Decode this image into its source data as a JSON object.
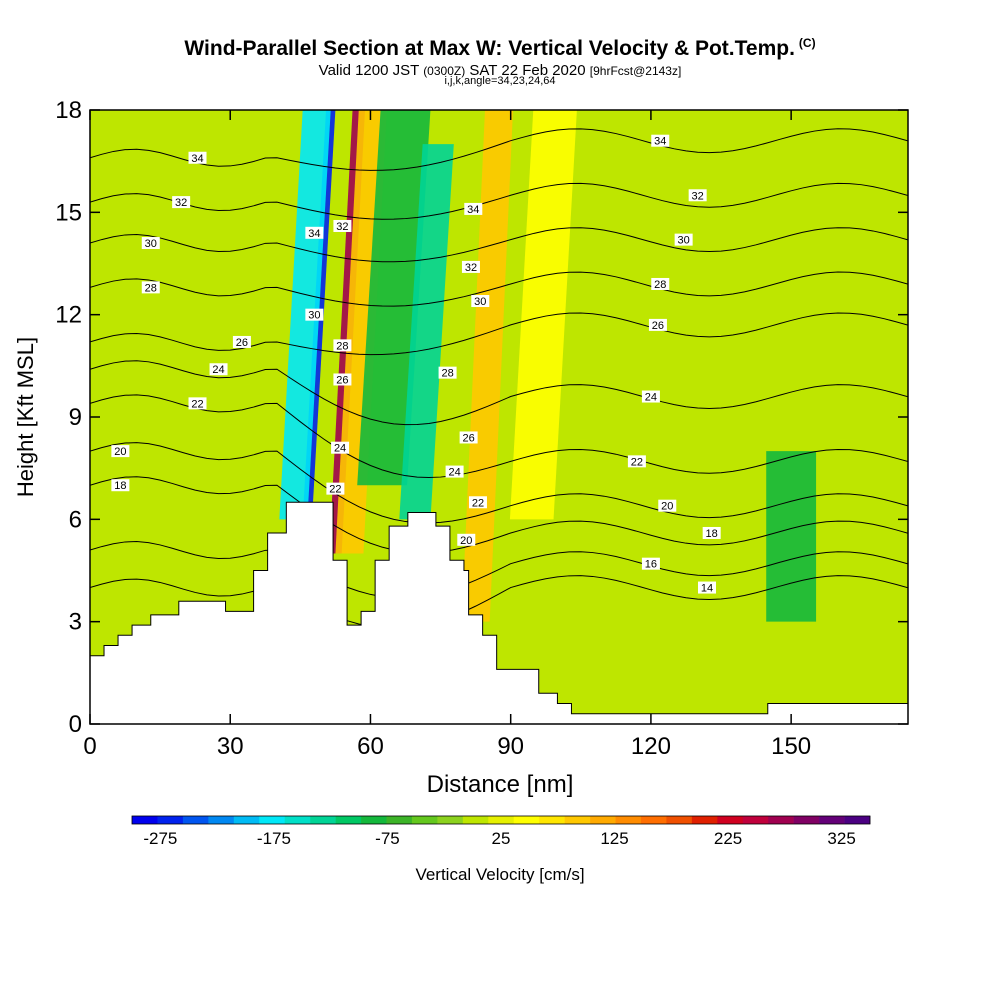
{
  "header": {
    "title": "Wind-Parallel Section at Max W: Vertical Velocity & Pot.Temp.",
    "copyright_mark": "(C)",
    "valid_prefix": "Valid 1200 JST",
    "valid_utc": "(0300Z)",
    "valid_date": "SAT 22 Feb 2020",
    "forecast_info": "[9hrFcst@2143z]",
    "ijk_line": "i,j,k,angle=34,23,24,64"
  },
  "chart_data": {
    "type": "heatmap",
    "xlabel": "Distance [nm]",
    "ylabel": "Height [Kft MSL]",
    "xlim": [
      0,
      175
    ],
    "ylim": [
      0,
      18
    ],
    "xticks": [
      0,
      30,
      60,
      90,
      120,
      150
    ],
    "yticks": [
      0,
      3,
      6,
      9,
      12,
      15,
      18
    ],
    "colorbar": {
      "label": "Vertical Velocity [cm/s]",
      "tick_labels": [
        -275,
        -175,
        -75,
        25,
        125,
        225,
        325
      ],
      "min": -300,
      "max": 350,
      "step": 25,
      "colors": [
        "#0000ee",
        "#0022ee",
        "#0055f0",
        "#0088f2",
        "#00bbf5",
        "#00e8f8",
        "#00e0c8",
        "#00d496",
        "#00c864",
        "#14b83c",
        "#3cb428",
        "#64c81e",
        "#8cd21e",
        "#bee600",
        "#e6f000",
        "#ffff00",
        "#ffe600",
        "#ffc800",
        "#ffaa00",
        "#ff8c00",
        "#ff6e00",
        "#f05000",
        "#e02000",
        "#d00020",
        "#c0003c",
        "#a00050",
        "#800064",
        "#640078",
        "#4b0082"
      ]
    },
    "velocity_features_cm_s": [
      {
        "x": 49,
        "ymin": 6,
        "ymax": 18,
        "value": -275
      },
      {
        "x": 46,
        "ymin": 6,
        "ymax": 18,
        "value": -175
      },
      {
        "x": 55,
        "ymin": 5,
        "ymax": 18,
        "value": 325
      },
      {
        "x": 58,
        "ymin": 5,
        "ymax": 18,
        "value": 125
      },
      {
        "x": 65,
        "ymin": 7,
        "ymax": 18,
        "value": -75
      },
      {
        "x": 72,
        "ymin": 6,
        "ymax": 17,
        "value": -125
      },
      {
        "x": 85,
        "ymin": 3,
        "ymax": 18,
        "value": 125
      },
      {
        "x": 97,
        "ymin": 6,
        "ymax": 18,
        "value": 75
      },
      {
        "x": 25,
        "ymin": 4,
        "ymax": 14,
        "value": 25
      },
      {
        "x": 150,
        "ymin": 3,
        "ymax": 8,
        "value": -75
      }
    ],
    "theta_levels_C": [
      14,
      16,
      18,
      20,
      22,
      24,
      26,
      28,
      30,
      32,
      34
    ],
    "theta_heights_left": {
      "14": 4.0,
      "16": 5.1,
      "18": 7.0,
      "20": 8.0,
      "22": 9.4,
      "24": 10.4,
      "26": 11.2,
      "28": 12.8,
      "30": 14.1,
      "32": 15.3,
      "34": 16.6
    },
    "theta_heights_right": {
      "14": 4.0,
      "16": 4.7,
      "18": 5.6,
      "20": 6.4,
      "22": 7.7,
      "24": 9.6,
      "26": 11.7,
      "28": 12.9,
      "30": 14.2,
      "32": 15.5,
      "34": 17.1
    },
    "theta_labels": [
      {
        "text": "34",
        "x": 23,
        "y": 16.6
      },
      {
        "text": "32",
        "x": 19.5,
        "y": 15.3
      },
      {
        "text": "30",
        "x": 13,
        "y": 14.1
      },
      {
        "text": "28",
        "x": 13,
        "y": 12.8
      },
      {
        "text": "26",
        "x": 32.5,
        "y": 11.2
      },
      {
        "text": "24",
        "x": 27.5,
        "y": 10.4
      },
      {
        "text": "22",
        "x": 23,
        "y": 9.4
      },
      {
        "text": "20",
        "x": 6.5,
        "y": 8.0
      },
      {
        "text": "18",
        "x": 6.5,
        "y": 7.0
      },
      {
        "text": "34",
        "x": 48,
        "y": 14.4
      },
      {
        "text": "32",
        "x": 54,
        "y": 14.6
      },
      {
        "text": "30",
        "x": 48,
        "y": 12.0
      },
      {
        "text": "28",
        "x": 54,
        "y": 11.1
      },
      {
        "text": "26",
        "x": 54,
        "y": 10.1
      },
      {
        "text": "24",
        "x": 53.5,
        "y": 8.1
      },
      {
        "text": "22",
        "x": 52.5,
        "y": 6.9
      },
      {
        "text": "28",
        "x": 76.5,
        "y": 10.3
      },
      {
        "text": "26",
        "x": 81,
        "y": 8.4
      },
      {
        "text": "24",
        "x": 78,
        "y": 7.4
      },
      {
        "text": "22",
        "x": 83,
        "y": 6.5
      },
      {
        "text": "20",
        "x": 80.5,
        "y": 5.4
      },
      {
        "text": "30",
        "x": 83.5,
        "y": 12.4
      },
      {
        "text": "32",
        "x": 81.5,
        "y": 13.4
      },
      {
        "text": "34",
        "x": 82,
        "y": 15.1
      },
      {
        "text": "34",
        "x": 122,
        "y": 17.1
      },
      {
        "text": "32",
        "x": 130,
        "y": 15.5
      },
      {
        "text": "30",
        "x": 127,
        "y": 14.2
      },
      {
        "text": "28",
        "x": 122,
        "y": 12.9
      },
      {
        "text": "26",
        "x": 121.5,
        "y": 11.7
      },
      {
        "text": "24",
        "x": 120,
        "y": 9.6
      },
      {
        "text": "22",
        "x": 117,
        "y": 7.7
      },
      {
        "text": "20",
        "x": 123.5,
        "y": 6.4
      },
      {
        "text": "18",
        "x": 133,
        "y": 5.6
      },
      {
        "text": "16",
        "x": 120,
        "y": 4.7
      },
      {
        "text": "14",
        "x": 132,
        "y": 4.0
      }
    ],
    "terrain": [
      [
        0,
        2
      ],
      [
        3,
        2
      ],
      [
        3,
        2.3
      ],
      [
        6,
        2.3
      ],
      [
        6,
        2.6
      ],
      [
        9,
        2.6
      ],
      [
        9,
        2.9
      ],
      [
        13,
        2.9
      ],
      [
        13,
        3.2
      ],
      [
        19,
        3.2
      ],
      [
        19,
        3.6
      ],
      [
        29,
        3.6
      ],
      [
        29,
        3.3
      ],
      [
        35,
        3.3
      ],
      [
        35,
        4.5
      ],
      [
        38,
        4.5
      ],
      [
        38,
        5.6
      ],
      [
        42,
        5.6
      ],
      [
        42,
        6.5
      ],
      [
        52,
        6.5
      ],
      [
        52,
        4.8
      ],
      [
        55,
        4.8
      ],
      [
        55,
        2.9
      ],
      [
        58,
        2.9
      ],
      [
        58,
        3.3
      ],
      [
        61,
        3.3
      ],
      [
        61,
        4.8
      ],
      [
        64,
        4.8
      ],
      [
        64,
        5.8
      ],
      [
        68,
        5.8
      ],
      [
        68,
        6.2
      ],
      [
        74,
        6.2
      ],
      [
        74,
        5.8
      ],
      [
        77,
        5.8
      ],
      [
        77,
        4.8
      ],
      [
        80,
        4.8
      ],
      [
        80,
        4.5
      ],
      [
        81,
        4.5
      ],
      [
        81,
        3.2
      ],
      [
        84,
        3.2
      ],
      [
        84,
        2.6
      ],
      [
        87,
        2.6
      ],
      [
        87,
        1.6
      ],
      [
        96,
        1.6
      ],
      [
        96,
        0.9
      ],
      [
        100,
        0.9
      ],
      [
        100,
        0.6
      ],
      [
        103,
        0.6
      ],
      [
        103,
        0.3
      ],
      [
        145,
        0.3
      ],
      [
        145,
        0.6
      ],
      [
        175,
        0.6
      ]
    ]
  }
}
